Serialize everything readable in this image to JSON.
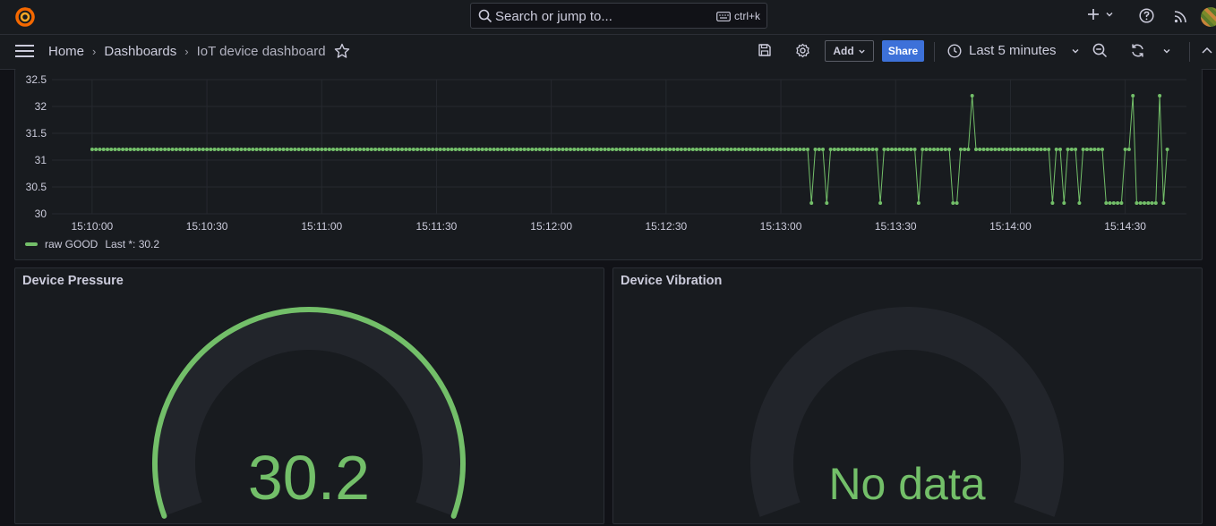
{
  "topbar": {
    "search_placeholder": "Search or jump to...",
    "search_shortcut": "ctrl+k"
  },
  "navbar": {
    "breadcrumbs": [
      "Home",
      "Dashboards",
      "IoT device dashboard"
    ],
    "add_label": "Add",
    "share_label": "Share",
    "time_range": "Last 5 minutes"
  },
  "colors": {
    "accent_green": "#73bf69",
    "share_blue": "#3d71d9",
    "background": "#111217",
    "panel": "#181b1f"
  },
  "timeseries_panel": {
    "legend_name": "raw GOOD",
    "legend_last": "Last *: 30.2",
    "chart_data": {
      "type": "line",
      "title": "",
      "series_name": "raw GOOD",
      "y_ticks": [
        "30",
        "30.5",
        "31",
        "31.5",
        "32",
        "32.5"
      ],
      "ylim": [
        30,
        32.5
      ],
      "x_ticks": [
        "15:10:00",
        "15:10:30",
        "15:11:00",
        "15:11:30",
        "15:12:00",
        "15:12:30",
        "15:13:00",
        "15:13:30",
        "15:14:00",
        "15:14:30"
      ],
      "x_range_seconds": [
        -10.5,
        286
      ],
      "baseline_value": 31.2,
      "events": [
        {
          "t": 188,
          "v": 30.2
        },
        {
          "t": 192,
          "v": 30.2
        },
        {
          "t": 206,
          "v": 30.2
        },
        {
          "t": 216,
          "v": 30.2
        },
        {
          "t": 225,
          "v": 30.2
        },
        {
          "t": 226,
          "v": 30.2
        },
        {
          "t": 230,
          "v": 32.2
        },
        {
          "t": 251,
          "v": 30.2
        },
        {
          "t": 254,
          "v": 30.2
        },
        {
          "t": 258,
          "v": 30.2
        },
        {
          "t": 265,
          "v": 30.2
        },
        {
          "t": 266,
          "v": 30.2
        },
        {
          "t": 267,
          "v": 30.2
        },
        {
          "t": 268,
          "v": 30.2
        },
        {
          "t": 269,
          "v": 30.2
        },
        {
          "t": 272,
          "v": 32.2
        },
        {
          "t": 273,
          "v": 30.2
        },
        {
          "t": 274,
          "v": 30.2
        },
        {
          "t": 275,
          "v": 30.2
        },
        {
          "t": 276,
          "v": 30.2
        },
        {
          "t": 277,
          "v": 30.2
        },
        {
          "t": 278,
          "v": 30.2
        },
        {
          "t": 279,
          "v": 32.2
        },
        {
          "t": 280,
          "v": 30.2
        }
      ],
      "last_value": 30.2
    }
  },
  "pressure_panel": {
    "title": "Device Pressure",
    "value": "30.2",
    "gauge_fraction": 1.0
  },
  "vibration_panel": {
    "title": "Device Vibration",
    "value": "No data",
    "gauge_fraction": 0
  }
}
